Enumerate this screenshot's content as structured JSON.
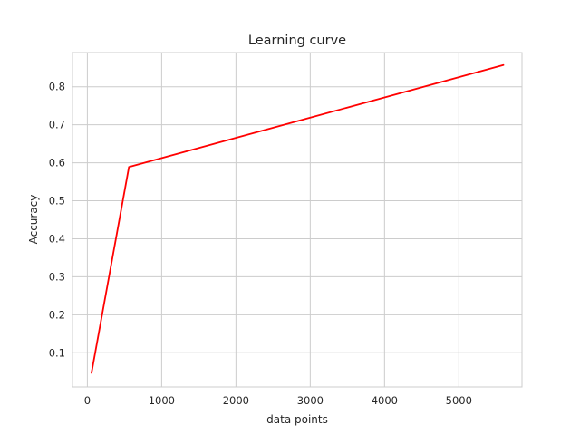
{
  "chart_data": {
    "type": "line",
    "title": "Learning curve",
    "xlabel": "data points",
    "ylabel": "Accuracy",
    "xlim": [
      -200,
      5850
    ],
    "ylim": [
      0.01,
      0.89
    ],
    "xticks": [
      0,
      1000,
      2000,
      3000,
      4000,
      5000
    ],
    "yticks": [
      0.1,
      0.2,
      0.3,
      0.4,
      0.5,
      0.6,
      0.7,
      0.8
    ],
    "grid": true,
    "series": [
      {
        "color": "#ff0000",
        "x": [
          56,
          560,
          5600
        ],
        "y": [
          0.047,
          0.589,
          0.857
        ]
      }
    ]
  }
}
